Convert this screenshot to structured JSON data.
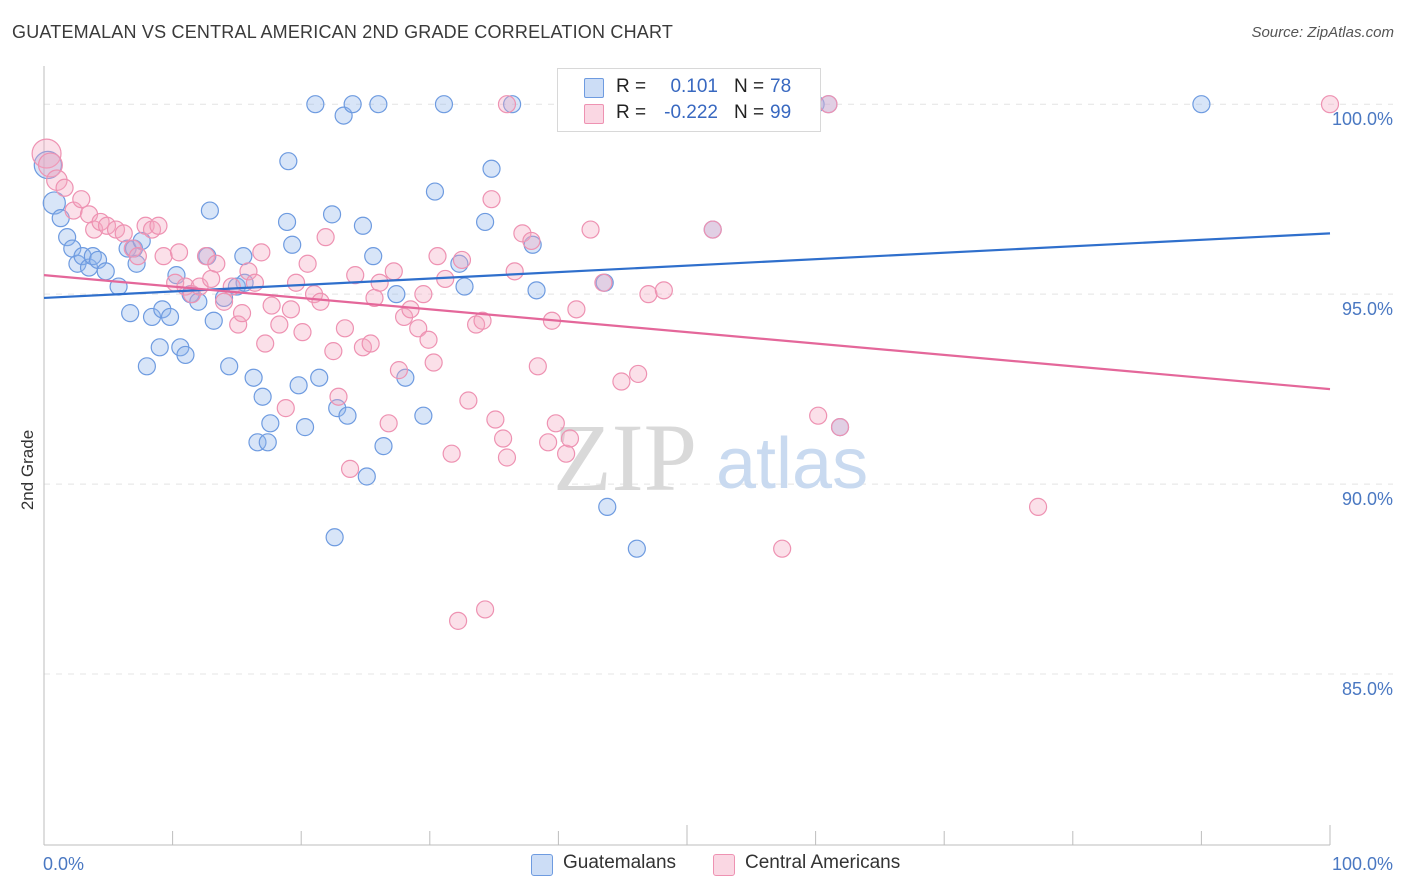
{
  "header": {
    "title": "GUATEMALAN VS CENTRAL AMERICAN 2ND GRADE CORRELATION CHART",
    "source": "Source: ZipAtlas.com"
  },
  "watermark": {
    "zip": "ZIP",
    "atlas": "atlas"
  },
  "legend": {
    "rows": [
      {
        "r_label": "R =",
        "r_value": "0.101",
        "n_label": "N =",
        "n_value": "78",
        "color": "#8fb4ea"
      },
      {
        "r_label": "R =",
        "r_value": "-0.222",
        "n_label": "N =",
        "n_value": "99",
        "color": "#f4a6c0"
      }
    ],
    "bottom": [
      {
        "label": "Guatemalans",
        "color": "#8fb4ea"
      },
      {
        "label": "Central Americans",
        "color": "#f4a6c0"
      }
    ]
  },
  "colors": {
    "blue_fill": "rgba(143,180,234,0.35)",
    "blue_stroke": "#6e9be0",
    "blue_line": "#2f6fcc",
    "pink_fill": "rgba(244,166,192,0.35)",
    "pink_stroke": "#ee92b2",
    "pink_line": "#e4679a",
    "grid": "#e4e4e4",
    "tick_label": "#4a78c2"
  },
  "chart_data": {
    "type": "scatter",
    "title": "GUATEMALAN VS CENTRAL AMERICAN 2ND GRADE CORRELATION CHART",
    "xlabel": "",
    "ylabel": "2nd Grade",
    "xlim": [
      0,
      100
    ],
    "ylim": [
      80.5,
      100.9
    ],
    "x_tick_labels": [
      "0.0%",
      "100.0%"
    ],
    "y_ticks": [
      85,
      90,
      95,
      100
    ],
    "y_tick_labels": [
      "85.0%",
      "90.0%",
      "95.0%",
      "100.0%"
    ],
    "grid": true,
    "legend_position": "top-center",
    "series": [
      {
        "name": "Guatemalans",
        "trend": {
          "x": [
            0,
            100
          ],
          "y": [
            94.9,
            96.6
          ]
        },
        "points": [
          [
            0.3,
            98.4,
            1.6
          ],
          [
            0.8,
            97.4,
            1.3
          ],
          [
            1.3,
            97.0,
            1.0
          ],
          [
            1.8,
            96.5,
            1.0
          ],
          [
            2.2,
            96.2,
            1.0
          ],
          [
            2.6,
            95.8,
            1.0
          ],
          [
            3.0,
            96.0,
            1.0
          ],
          [
            3.5,
            95.7,
            1.0
          ],
          [
            3.8,
            96.0,
            1.0
          ],
          [
            4.2,
            95.9,
            1.0
          ],
          [
            4.8,
            95.6,
            1.0
          ],
          [
            5.8,
            95.2,
            1.0
          ],
          [
            6.5,
            96.2,
            1.0
          ],
          [
            6.7,
            94.5,
            1.0
          ],
          [
            7.0,
            96.2,
            1.0
          ],
          [
            7.2,
            95.8,
            1.0
          ],
          [
            7.6,
            96.4,
            1.0
          ],
          [
            8.0,
            93.1,
            1.0
          ],
          [
            8.4,
            94.4,
            1.0
          ],
          [
            9.0,
            93.6,
            1.0
          ],
          [
            9.2,
            94.6,
            1.0
          ],
          [
            9.8,
            94.4,
            1.0
          ],
          [
            10.3,
            95.5,
            1.0
          ],
          [
            10.6,
            93.6,
            1.0
          ],
          [
            11.0,
            93.4,
            1.0
          ],
          [
            11.4,
            95.0,
            1.0
          ],
          [
            12.0,
            94.8,
            1.0
          ],
          [
            12.7,
            96.0,
            1.0
          ],
          [
            12.9,
            97.2,
            1.0
          ],
          [
            13.2,
            94.3,
            1.0
          ],
          [
            14.0,
            94.9,
            1.0
          ],
          [
            14.4,
            93.1,
            1.0
          ],
          [
            15.0,
            95.2,
            1.0
          ],
          [
            15.5,
            96.0,
            1.0
          ],
          [
            15.6,
            95.3,
            1.0
          ],
          [
            16.3,
            92.8,
            1.0
          ],
          [
            16.6,
            91.1,
            1.0
          ],
          [
            17.0,
            92.3,
            1.0
          ],
          [
            17.4,
            91.1,
            1.0
          ],
          [
            17.6,
            91.6,
            1.0
          ],
          [
            18.9,
            96.9,
            1.0
          ],
          [
            19.0,
            98.5,
            1.0
          ],
          [
            19.3,
            96.3,
            1.0
          ],
          [
            19.8,
            92.6,
            1.0
          ],
          [
            20.3,
            91.5,
            1.0
          ],
          [
            21.1,
            100.0,
            1.0
          ],
          [
            21.4,
            92.8,
            1.0
          ],
          [
            22.4,
            97.1,
            1.0
          ],
          [
            22.6,
            88.6,
            1.0
          ],
          [
            22.8,
            92.0,
            1.0
          ],
          [
            23.3,
            99.7,
            1.0
          ],
          [
            23.6,
            91.8,
            1.0
          ],
          [
            24.0,
            100.0,
            1.0
          ],
          [
            24.8,
            96.8,
            1.0
          ],
          [
            25.1,
            90.2,
            1.0
          ],
          [
            25.6,
            96.0,
            1.0
          ],
          [
            26.0,
            100.0,
            1.0
          ],
          [
            26.4,
            91.0,
            1.0
          ],
          [
            27.4,
            95.0,
            1.0
          ],
          [
            28.1,
            92.8,
            1.0
          ],
          [
            29.5,
            91.8,
            1.0
          ],
          [
            30.4,
            97.7,
            1.0
          ],
          [
            31.1,
            100.0,
            1.0
          ],
          [
            32.3,
            95.8,
            1.0
          ],
          [
            32.7,
            95.2,
            1.0
          ],
          [
            34.3,
            96.9,
            1.0
          ],
          [
            34.8,
            98.3,
            1.0
          ],
          [
            36.4,
            100.0,
            1.0
          ],
          [
            38.0,
            96.3,
            1.0
          ],
          [
            38.3,
            95.1,
            1.0
          ],
          [
            43.6,
            95.3,
            1.0
          ],
          [
            43.8,
            89.4,
            1.0
          ],
          [
            46.1,
            88.3,
            1.0
          ],
          [
            52.0,
            96.7,
            1.0
          ],
          [
            60.0,
            100.0,
            1.0
          ],
          [
            61.0,
            100.0,
            1.0
          ],
          [
            61.9,
            91.5,
            1.0
          ],
          [
            90.0,
            100.0,
            1.0
          ]
        ]
      },
      {
        "name": "Central Americans",
        "trend": {
          "x": [
            0,
            100
          ],
          "y": [
            95.5,
            92.5
          ]
        },
        "points": [
          [
            0.2,
            98.7,
            1.7
          ],
          [
            0.5,
            98.4,
            1.4
          ],
          [
            1.0,
            98.0,
            1.2
          ],
          [
            1.6,
            97.8,
            1.0
          ],
          [
            2.3,
            97.2,
            1.0
          ],
          [
            2.9,
            97.5,
            1.0
          ],
          [
            3.5,
            97.1,
            1.0
          ],
          [
            3.9,
            96.7,
            1.0
          ],
          [
            4.4,
            96.9,
            1.0
          ],
          [
            4.9,
            96.8,
            1.0
          ],
          [
            5.6,
            96.7,
            1.0
          ],
          [
            6.2,
            96.6,
            1.0
          ],
          [
            6.9,
            96.2,
            1.0
          ],
          [
            7.3,
            96.0,
            1.0
          ],
          [
            7.9,
            96.8,
            1.0
          ],
          [
            8.4,
            96.7,
            1.0
          ],
          [
            8.9,
            96.8,
            1.0
          ],
          [
            9.3,
            96.0,
            1.0
          ],
          [
            10.2,
            95.3,
            1.0
          ],
          [
            10.5,
            96.1,
            1.0
          ],
          [
            11.0,
            95.2,
            1.0
          ],
          [
            11.5,
            95.0,
            1.0
          ],
          [
            12.1,
            95.2,
            1.0
          ],
          [
            12.6,
            96.0,
            1.0
          ],
          [
            13.0,
            95.4,
            1.0
          ],
          [
            13.4,
            95.8,
            1.0
          ],
          [
            14.0,
            94.8,
            1.0
          ],
          [
            14.6,
            95.2,
            1.0
          ],
          [
            15.1,
            94.2,
            1.0
          ],
          [
            15.4,
            94.5,
            1.0
          ],
          [
            15.9,
            95.6,
            1.0
          ],
          [
            16.4,
            95.3,
            1.0
          ],
          [
            16.9,
            96.1,
            1.0
          ],
          [
            17.2,
            93.7,
            1.0
          ],
          [
            17.7,
            94.7,
            1.0
          ],
          [
            18.3,
            94.2,
            1.0
          ],
          [
            18.8,
            92.0,
            1.0
          ],
          [
            19.2,
            94.6,
            1.0
          ],
          [
            19.6,
            95.3,
            1.0
          ],
          [
            20.1,
            94.0,
            1.0
          ],
          [
            20.5,
            95.8,
            1.0
          ],
          [
            21.0,
            95.0,
            1.0
          ],
          [
            21.5,
            94.8,
            1.0
          ],
          [
            21.9,
            96.5,
            1.0
          ],
          [
            22.5,
            93.5,
            1.0
          ],
          [
            22.9,
            92.3,
            1.0
          ],
          [
            23.4,
            94.1,
            1.0
          ],
          [
            23.8,
            90.4,
            1.0
          ],
          [
            24.2,
            95.5,
            1.0
          ],
          [
            24.8,
            93.6,
            1.0
          ],
          [
            25.4,
            93.7,
            1.0
          ],
          [
            25.7,
            94.9,
            1.0
          ],
          [
            26.1,
            95.3,
            1.0
          ],
          [
            26.8,
            91.6,
            1.0
          ],
          [
            27.2,
            95.6,
            1.0
          ],
          [
            27.6,
            93.0,
            1.0
          ],
          [
            28.0,
            94.4,
            1.0
          ],
          [
            28.5,
            94.6,
            1.0
          ],
          [
            29.1,
            94.1,
            1.0
          ],
          [
            29.5,
            95.0,
            1.0
          ],
          [
            29.9,
            93.8,
            1.0
          ],
          [
            30.3,
            93.2,
            1.0
          ],
          [
            30.6,
            96.0,
            1.0
          ],
          [
            31.2,
            95.4,
            1.0
          ],
          [
            31.7,
            90.8,
            1.0
          ],
          [
            32.5,
            95.9,
            1.0
          ],
          [
            33.0,
            92.2,
            1.0
          ],
          [
            33.6,
            94.2,
            1.0
          ],
          [
            34.1,
            94.3,
            1.0
          ],
          [
            34.8,
            97.5,
            1.0
          ],
          [
            35.1,
            91.7,
            1.0
          ],
          [
            35.7,
            91.2,
            1.0
          ],
          [
            36.0,
            90.7,
            1.0
          ],
          [
            36.6,
            95.6,
            1.0
          ],
          [
            37.2,
            96.6,
            1.0
          ],
          [
            37.9,
            96.4,
            1.0
          ],
          [
            38.4,
            93.1,
            1.0
          ],
          [
            39.2,
            91.1,
            1.0
          ],
          [
            39.5,
            94.3,
            1.0
          ],
          [
            39.8,
            91.6,
            1.0
          ],
          [
            40.6,
            90.8,
            1.0
          ],
          [
            40.9,
            91.2,
            1.0
          ],
          [
            41.4,
            94.6,
            1.0
          ],
          [
            42.5,
            96.7,
            1.0
          ],
          [
            43.5,
            95.3,
            1.0
          ],
          [
            44.9,
            92.7,
            1.0
          ],
          [
            46.2,
            92.9,
            1.0
          ],
          [
            47.0,
            95.0,
            1.0
          ],
          [
            48.2,
            95.1,
            1.0
          ],
          [
            52.0,
            96.7,
            1.0
          ],
          [
            57.4,
            88.3,
            1.0
          ],
          [
            60.2,
            91.8,
            1.0
          ],
          [
            61.9,
            91.5,
            1.0
          ],
          [
            77.3,
            89.4,
            1.0
          ],
          [
            100.0,
            100.0,
            1.0
          ],
          [
            32.2,
            86.4,
            1.0
          ],
          [
            34.3,
            86.7,
            1.0
          ],
          [
            36.0,
            100.0,
            1.0
          ],
          [
            61.0,
            100.0,
            1.0
          ]
        ]
      }
    ]
  }
}
